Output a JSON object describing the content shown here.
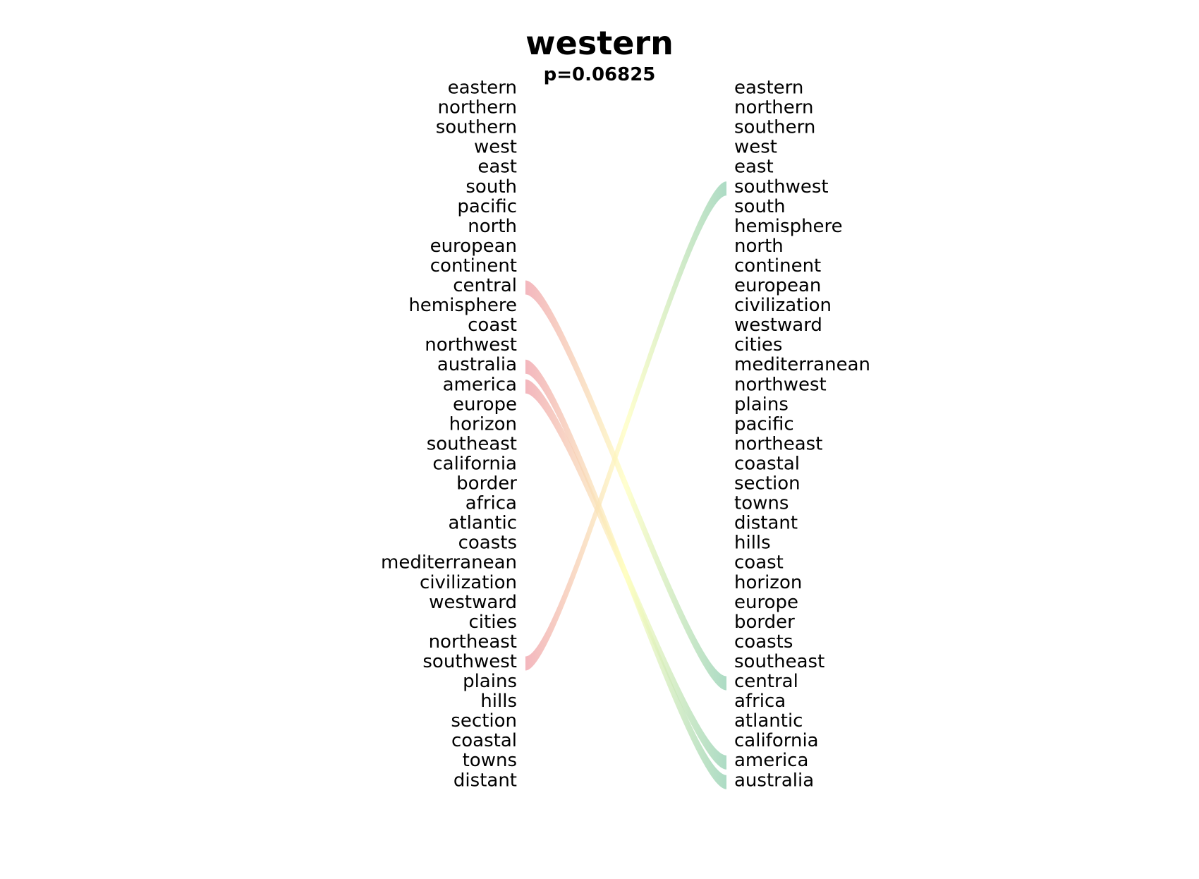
{
  "chart_data": {
    "type": "bump",
    "title": "western",
    "subtitle": "p=0.06825",
    "left_words": [
      "eastern",
      "northern",
      "southern",
      "west",
      "east",
      "south",
      "pacific",
      "north",
      "european",
      "continent",
      "central",
      "hemisphere",
      "coast",
      "northwest",
      "australia",
      "america",
      "europe",
      "horizon",
      "southeast",
      "california",
      "border",
      "africa",
      "atlantic",
      "coasts",
      "mediterranean",
      "civilization",
      "westward",
      "cities",
      "northeast",
      "southwest",
      "plains",
      "hills",
      "section",
      "coastal",
      "towns",
      "distant"
    ],
    "right_words": [
      "eastern",
      "northern",
      "southern",
      "west",
      "east",
      "southwest",
      "south",
      "hemisphere",
      "north",
      "continent",
      "european",
      "civilization",
      "westward",
      "cities",
      "mediterranean",
      "northwest",
      "plains",
      "pacific",
      "northeast",
      "coastal",
      "section",
      "towns",
      "distant",
      "hills",
      "coast",
      "horizon",
      "europe",
      "border",
      "coasts",
      "southeast",
      "central",
      "africa",
      "atlantic",
      "california",
      "america",
      "australia"
    ],
    "highlighted_links": [
      "central",
      "australia",
      "america",
      "southwest"
    ],
    "colors": {
      "start": "#ef9fa8",
      "mid": "#ffffbf",
      "end": "#91cfb1"
    }
  }
}
